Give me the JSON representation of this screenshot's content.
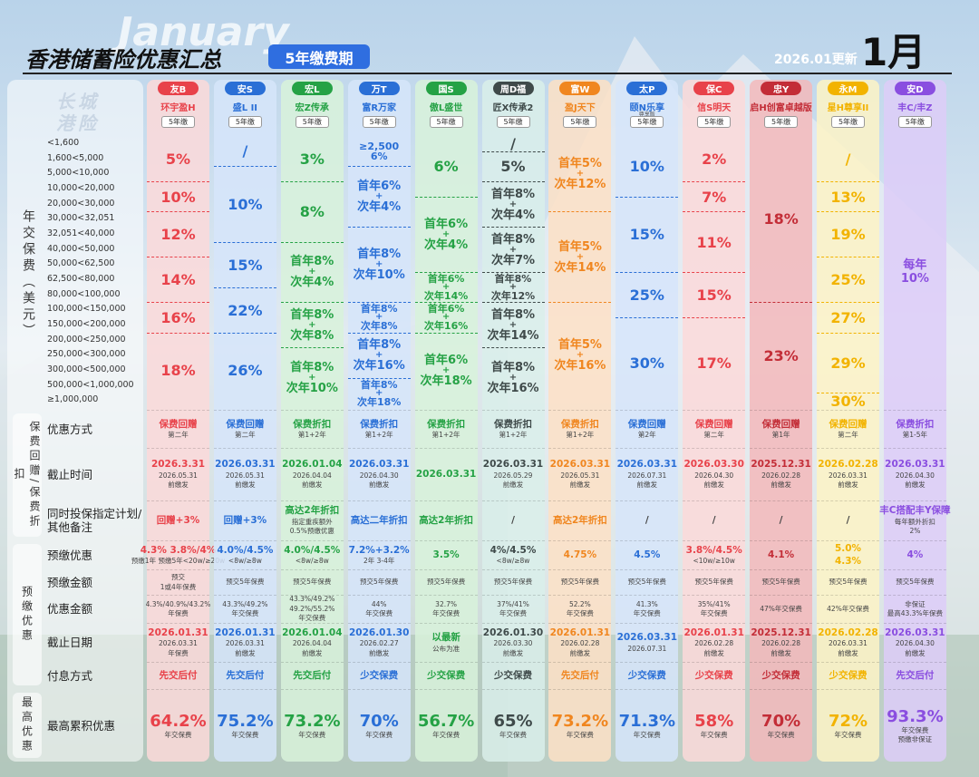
{
  "header": {
    "watermark": "January",
    "title": "香港储蓄险优惠汇总",
    "badge": "5年缴费期",
    "updated": "2026.01更新",
    "month": "1月",
    "brand": "长城港险"
  },
  "band_section_label": "年交保费（美元）",
  "bands": [
    "<1,600",
    "1,600<5,000",
    "5,000<10,000",
    "10,000<20,000",
    "20,000<30,000",
    "30,000<32,051",
    "32,051<40,000",
    "40,000<50,000",
    "50,000<62,500",
    "62,500<80,000",
    "80,000<100,000",
    "100,000<150,000",
    "150,000<200,000",
    "200,000<250,000",
    "250,000<300,000",
    "300,000<500,000",
    "500,000<1,000,000",
    "≥1,000,000"
  ],
  "sections": [
    {
      "label": "保费回赠/保费折扣",
      "rows": [
        "优惠方式",
        "截止时间",
        "同时投保指定计划/其他备注"
      ]
    },
    {
      "label": "预缴优惠",
      "rows": [
        "预缴优惠",
        "预缴金额",
        "优惠金额",
        "截止日期",
        "付息方式"
      ]
    },
    {
      "label": "最高优惠",
      "rows": [
        "最高累积优惠"
      ]
    }
  ],
  "columns": [
    {
      "tag": "友B",
      "product": "环宇盈H",
      "term": "5年缴",
      "color": "#e8424a",
      "fill": "#fbd9d9",
      "tiers": [
        {
          "bands": [
            0,
            2
          ],
          "lines": [
            "5%"
          ]
        },
        {
          "bands": [
            3,
            4
          ],
          "lines": [
            "10%"
          ]
        },
        {
          "bands": [
            5,
            7
          ],
          "lines": [
            "12%"
          ]
        },
        {
          "bands": [
            8,
            10
          ],
          "lines": [
            "14%"
          ]
        },
        {
          "bands": [
            11,
            12
          ],
          "lines": [
            "16%"
          ]
        },
        {
          "bands": [
            13,
            17
          ],
          "lines": [
            "18%"
          ]
        }
      ],
      "cells": [
        [
          "保费回赠",
          "第二年"
        ],
        [
          "2026.3.31",
          "2026.05.31",
          "前缴发"
        ],
        [
          "回赠+3%"
        ],
        [
          "4.3%  3.8%/4%",
          "预缴1年  预缴5年<20w/≥20w"
        ],
        [
          "预交",
          "1或4年保费"
        ],
        [
          "4.3%/40.9%/43.2%",
          "年保费"
        ],
        [
          "2026.01.31",
          "2026.03.31",
          "年保费"
        ],
        [
          "先交后付"
        ],
        [
          "64.2%",
          "年交保费"
        ]
      ]
    },
    {
      "tag": "安S",
      "product": "盛L II",
      "term": "5年缴",
      "color": "#2a6fd6",
      "fill": "#d6e5fa",
      "tiers": [
        {
          "bands": [
            0,
            1
          ],
          "lines": [
            "/"
          ]
        },
        {
          "bands": [
            2,
            6
          ],
          "lines": [
            "10%"
          ]
        },
        {
          "bands": [
            7,
            9
          ],
          "lines": [
            "15%"
          ]
        },
        {
          "bands": [
            10,
            12
          ],
          "lines": [
            "22%"
          ]
        },
        {
          "bands": [
            13,
            17
          ],
          "lines": [
            "26%"
          ]
        }
      ],
      "cells": [
        [
          "保费回赠",
          "第二年"
        ],
        [
          "2026.03.31",
          "2026.05.31",
          "前缴发"
        ],
        [
          "回赠+3%"
        ],
        [
          "4.0%/4.5%",
          "<8w/≥8w"
        ],
        [
          "预交5年保费"
        ],
        [
          "43.3%/49.2%",
          "年交保费"
        ],
        [
          "2026.01.31",
          "2026.03.31",
          "前缴发"
        ],
        [
          "先交后付"
        ],
        [
          "75.2%",
          "年交保费"
        ]
      ]
    },
    {
      "tag": "宏L",
      "product": "宏Z传承",
      "term": "5年缴",
      "color": "#25a245",
      "fill": "#d8f2da",
      "tiers": [
        {
          "bands": [
            0,
            2
          ],
          "lines": [
            "3%"
          ]
        },
        {
          "bands": [
            3,
            6
          ],
          "lines": [
            "8%"
          ]
        },
        {
          "bands": [
            7,
            10
          ],
          "lines": [
            "首年8%",
            "+",
            "次年4%"
          ]
        },
        {
          "bands": [
            11,
            13
          ],
          "lines": [
            "首年8%",
            "+",
            "次年8%"
          ]
        },
        {
          "bands": [
            14,
            17
          ],
          "lines": [
            "首年8%",
            "+",
            "次年10%"
          ]
        }
      ],
      "cells": [
        [
          "保费折扣",
          "第1+2年"
        ],
        [
          "2026.01.04",
          "2026.04.04",
          "前缴发"
        ],
        [
          "高达2年折扣",
          "指定重疾额外",
          "0.5%预缴优惠"
        ],
        [
          "4.0%/4.5%",
          "<8w/≥8w"
        ],
        [
          "预交5年保费"
        ],
        [
          "43.3%/49.2%",
          "49.2%/55.2%",
          "年交保费"
        ],
        [
          "2026.01.04",
          "2026.04.04",
          "前缴发"
        ],
        [
          "先交后付"
        ],
        [
          "73.2%",
          "年交保费"
        ]
      ]
    },
    {
      "tag": "万T",
      "product": "富R万家",
      "term": "5年缴",
      "color": "#2a6fd6",
      "fill": "#d6e5fa",
      "tiers": [
        {
          "bands": [
            0,
            1
          ],
          "lines": [
            "≥2,500",
            "6%"
          ]
        },
        {
          "bands": [
            2,
            5
          ],
          "lines": [
            "首年6%",
            "+",
            "次年4%"
          ]
        },
        {
          "bands": [
            6,
            10
          ],
          "lines": [
            "首年8%",
            "+",
            "次年10%"
          ]
        },
        {
          "bands": [
            11,
            12
          ],
          "lines": [
            "首年8%",
            "+",
            "次年8%"
          ]
        },
        {
          "bands": [
            13,
            15
          ],
          "lines": [
            "首年8%",
            "+",
            "次年16%"
          ]
        },
        {
          "bands": [
            16,
            17
          ],
          "lines": [
            "首年8%",
            "+",
            "次年18%"
          ]
        }
      ],
      "cells": [
        [
          "保费折扣",
          "第1+2年"
        ],
        [
          "2026.03.31",
          "2026.04.30",
          "前缴发"
        ],
        [
          "高达二年折扣"
        ],
        [
          "7.2%+3.2%",
          "2年  3-4年"
        ],
        [
          "预交5年保费"
        ],
        [
          "44%",
          "年交保费"
        ],
        [
          "2026.01.30",
          "2026.02.27",
          "前缴发"
        ],
        [
          "少交保费"
        ],
        [
          "70%",
          "年交保费"
        ]
      ]
    },
    {
      "tag": "国S",
      "product": "傲L盛世",
      "term": "5年缴",
      "color": "#25a245",
      "fill": "#d8f2da",
      "tiers": [
        {
          "bands": [
            0,
            3
          ],
          "lines": [
            "6%"
          ]
        },
        {
          "bands": [
            4,
            8
          ],
          "lines": [
            "首年6%",
            "+",
            "次年4%"
          ]
        },
        {
          "bands": [
            9,
            10
          ],
          "lines": [
            "首年6%",
            "+",
            "次年14%"
          ]
        },
        {
          "bands": [
            11,
            12
          ],
          "lines": [
            "首年6%",
            "+",
            "次年16%"
          ]
        },
        {
          "bands": [
            13,
            17
          ],
          "lines": [
            "首年6%",
            "+",
            "次年18%"
          ]
        }
      ],
      "cells": [
        [
          "保费折扣",
          "第1+2年"
        ],
        [
          "2026.03.31"
        ],
        [
          "高达2年折扣"
        ],
        [
          "3.5%"
        ],
        [
          "预交5年保费"
        ],
        [
          "32.7%",
          "年交保费"
        ],
        [
          "以最新",
          "公布为准"
        ],
        [
          "少交保费"
        ],
        [
          "56.7%",
          "年交保费"
        ]
      ]
    },
    {
      "tag": "周D福",
      "product": "匠X传承2",
      "term": "5年缴",
      "color": "#3f4a4a",
      "fill": "#d9eeea",
      "tiers": [
        {
          "bands": [
            0,
            0
          ],
          "lines": [
            "/"
          ]
        },
        {
          "bands": [
            1,
            2
          ],
          "lines": [
            "5%"
          ]
        },
        {
          "bands": [
            3,
            5
          ],
          "lines": [
            "首年8%",
            "+",
            "次年4%"
          ]
        },
        {
          "bands": [
            6,
            8
          ],
          "lines": [
            "首年8%",
            "+",
            "次年7%"
          ]
        },
        {
          "bands": [
            9,
            10
          ],
          "lines": [
            "首年8%",
            "+",
            "次年12%"
          ]
        },
        {
          "bands": [
            11,
            13
          ],
          "lines": [
            "首年8%",
            "+",
            "次年14%"
          ]
        },
        {
          "bands": [
            14,
            17
          ],
          "lines": [
            "首年8%",
            "+",
            "次年16%"
          ]
        }
      ],
      "cells": [
        [
          "保费折扣",
          "第1+2年"
        ],
        [
          "2026.03.31",
          "2026.05.29",
          "前缴发"
        ],
        [
          "/"
        ],
        [
          "4%/4.5%",
          "<8w/≥8w"
        ],
        [
          "预交5年保费"
        ],
        [
          "37%/41%",
          "年交保费"
        ],
        [
          "2026.01.30",
          "2026.03.30",
          "前缴发"
        ],
        [
          "少交保费"
        ],
        [
          "65%",
          "年交保费"
        ]
      ]
    },
    {
      "tag": "富W",
      "product": "盈J天下",
      "term": "5年缴",
      "color": "#f0861f",
      "fill": "#fde1c6",
      "tiers": [
        {
          "bands": [
            0,
            4
          ],
          "lines": [
            "首年5%",
            "+",
            "次年12%"
          ]
        },
        {
          "bands": [
            5,
            10
          ],
          "lines": [
            "首年5%",
            "+",
            "次年14%"
          ]
        },
        {
          "bands": [
            11,
            17
          ],
          "lines": [
            "首年5%",
            "+",
            "次年16%"
          ]
        }
      ],
      "cells": [
        [
          "保费折扣",
          "第1+2年"
        ],
        [
          "2026.03.31",
          "2026.05.31",
          "前缴发"
        ],
        [
          "高达2年折扣"
        ],
        [
          "4.75%"
        ],
        [
          "预交5年保费"
        ],
        [
          "52.2%",
          "年交保费"
        ],
        [
          "2026.01.31",
          "2026.02.28",
          "前缴发"
        ],
        [
          "先交后付"
        ],
        [
          "73.2%",
          "年交保费"
        ]
      ]
    },
    {
      "tag": "太P",
      "product": "颐N乐享",
      "product_note": "尊享版",
      "term": "5年缴",
      "color": "#2a6fd6",
      "fill": "#d6e5fa",
      "tiers": [
        {
          "bands": [
            0,
            3
          ],
          "lines": [
            "10%"
          ]
        },
        {
          "bands": [
            4,
            8
          ],
          "lines": [
            "15%"
          ]
        },
        {
          "bands": [
            9,
            11
          ],
          "lines": [
            "25%"
          ]
        },
        {
          "bands": [
            12,
            17
          ],
          "lines": [
            "30%"
          ]
        }
      ],
      "cells": [
        [
          "保费回赠",
          "第2年"
        ],
        [
          "2026.03.31",
          "2026.07.31",
          "前缴发"
        ],
        [
          "/"
        ],
        [
          "4.5%"
        ],
        [
          "预交5年保费"
        ],
        [
          "41.3%",
          "年交保费"
        ],
        [
          "2026.03.31",
          "2026.07.31"
        ],
        [
          "少交保费"
        ],
        [
          "71.3%",
          "年交保费"
        ]
      ]
    },
    {
      "tag": "保C",
      "product": "信S明天",
      "term": "5年缴",
      "color": "#e8424a",
      "fill": "#fbd9d9",
      "tiers": [
        {
          "bands": [
            0,
            2
          ],
          "lines": [
            "2%"
          ]
        },
        {
          "bands": [
            3,
            4
          ],
          "lines": [
            "7%"
          ]
        },
        {
          "bands": [
            5,
            8
          ],
          "lines": [
            "11%"
          ]
        },
        {
          "bands": [
            9,
            11
          ],
          "lines": [
            "15%"
          ]
        },
        {
          "bands": [
            12,
            17
          ],
          "lines": [
            "17%"
          ]
        }
      ],
      "cells": [
        [
          "保费回赠",
          "第二年"
        ],
        [
          "2026.03.30",
          "2026.04.30",
          "前缴发"
        ],
        [
          "/"
        ],
        [
          "3.8%/4.5%",
          "<10w/≥10w"
        ],
        [
          "预交5年保费"
        ],
        [
          "35%/41%",
          "年交保费"
        ],
        [
          "2026.01.31",
          "2026.02.28",
          "前缴发"
        ],
        [
          "少交保费"
        ],
        [
          "58%",
          "年交保费"
        ]
      ]
    },
    {
      "tag": "忠Y",
      "product": "启H创富卓越版",
      "term": "5年缴",
      "color": "#c32d37",
      "fill": "#f3b9bb",
      "tiers": [
        {
          "bands": [
            0,
            10
          ],
          "lines": [
            "18%"
          ]
        },
        {
          "bands": [
            11,
            17
          ],
          "lines": [
            "23%"
          ]
        }
      ],
      "cells": [
        [
          "保费回赠",
          "第1年"
        ],
        [
          "2025.12.31",
          "2026.02.28",
          "前缴发"
        ],
        [
          "/"
        ],
        [
          "4.1%"
        ],
        [
          "预交5年保费"
        ],
        [
          "47%年交保费"
        ],
        [
          "2025.12.31",
          "2026.02.28",
          "前缴发"
        ],
        [
          "少交保费"
        ],
        [
          "70%",
          "年交保费"
        ]
      ]
    },
    {
      "tag": "永M",
      "product": "星H尊享II",
      "term": "5年缴",
      "color": "#f2b300",
      "fill": "#fdf3c6",
      "tiers": [
        {
          "bands": [
            0,
            2
          ],
          "lines": [
            "/"
          ]
        },
        {
          "bands": [
            3,
            4
          ],
          "lines": [
            "13%"
          ]
        },
        {
          "bands": [
            5,
            7
          ],
          "lines": [
            "19%"
          ]
        },
        {
          "bands": [
            8,
            10
          ],
          "lines": [
            "25%"
          ]
        },
        {
          "bands": [
            11,
            12
          ],
          "lines": [
            "27%"
          ]
        },
        {
          "bands": [
            13,
            16
          ],
          "lines": [
            "29%"
          ]
        },
        {
          "bands": [
            17,
            17
          ],
          "lines": [
            "30%"
          ]
        }
      ],
      "cells": [
        [
          "保费回赠",
          "第二年"
        ],
        [
          "2026.02.28",
          "2026.03.31",
          "前缴发"
        ],
        [
          "/"
        ],
        [
          "5.0%",
          "4.3%"
        ],
        [
          "预交5年保费"
        ],
        [
          "42%年交保费"
        ],
        [
          "2026.02.28",
          "2026.03.31",
          "前缴发"
        ],
        [
          "少交保费"
        ],
        [
          "72%",
          "年交保费"
        ]
      ]
    },
    {
      "tag": "安D",
      "product": "丰C/丰Z",
      "term": "5年缴",
      "color": "#8a4ee0",
      "fill": "#ddcdf8",
      "tiers": [
        {
          "bands": [
            0,
            17
          ],
          "lines": [
            "每年",
            "10%"
          ]
        }
      ],
      "cells": [
        [
          "保费折扣",
          "第1-5年"
        ],
        [
          "2026.03.31",
          "2026.04.30",
          "前缴发"
        ],
        [
          "丰C搭配丰Y保障",
          "每年额外折扣",
          "2%"
        ],
        [
          "4%"
        ],
        [
          "预交5年保费"
        ],
        [
          "非保证",
          "最高43.3%年保费"
        ],
        [
          "2026.03.31",
          "2026.04.30",
          "前缴发"
        ],
        [
          "先交后付"
        ],
        [
          "93.3%",
          "年交保费",
          "预缴非保证"
        ]
      ]
    }
  ]
}
